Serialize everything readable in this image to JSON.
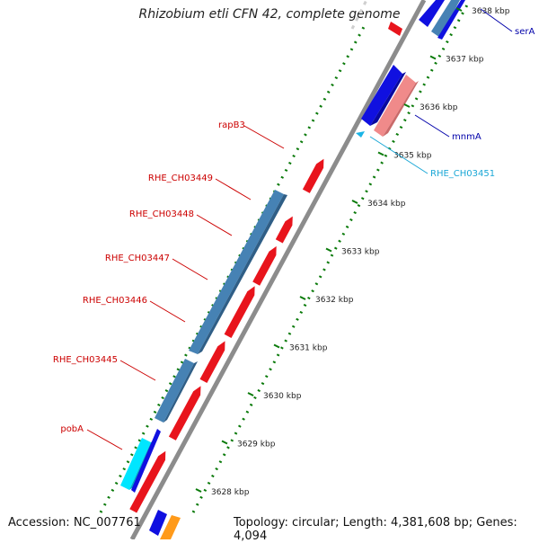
{
  "title": "Rhizobium etli CFN 42, complete genome",
  "footer": {
    "accession": "Accession: NC_007761",
    "summary": "Topology: circular; Length: 4,381,608 bp; Genes: 4,094"
  },
  "colors": {
    "forward_red": "#e8141c",
    "forward_blue": "#1010e0",
    "forward_pink": "#f08a8a",
    "steelblue": "#4682b4",
    "cyan": "#00e6ff",
    "orange": "#ff9a1a",
    "backbone": "#8c8c8c",
    "tick": "#0a7a0a",
    "label_red": "#cc0000",
    "label_blue": "#0000aa",
    "label_cyan": "#1aa7d6"
  },
  "map": {
    "axis_unit": "kbp",
    "visible_range_kbp": [
      3627.6,
      3638.2
    ],
    "ticks": [
      {
        "label": "3628 kbp",
        "pos_kbp": 3628
      },
      {
        "label": "3629 kbp",
        "pos_kbp": 3629
      },
      {
        "label": "3630 kbp",
        "pos_kbp": 3630
      },
      {
        "label": "3631 kbp",
        "pos_kbp": 3631
      },
      {
        "label": "3632 kbp",
        "pos_kbp": 3632
      },
      {
        "label": "3633 kbp",
        "pos_kbp": 3633
      },
      {
        "label": "3634 kbp",
        "pos_kbp": 3634
      },
      {
        "label": "3635 kbp",
        "pos_kbp": 3635
      },
      {
        "label": "3636 kbp",
        "pos_kbp": 3636
      },
      {
        "label": "3637 kbp",
        "pos_kbp": 3637
      },
      {
        "label": "3638 kbp",
        "pos_kbp": 3638
      }
    ],
    "genes": [
      {
        "name": "pobA",
        "label": "pobA",
        "start": 3628.05,
        "end": 3629.25,
        "strand": "+",
        "color_key": "forward_red",
        "label_color_key": "label_red"
      },
      {
        "name": "RHE_CH03445",
        "label": "RHE_CH03445",
        "start": 3629.5,
        "end": 3630.55,
        "strand": "+",
        "color_key": "forward_red",
        "label_color_key": "label_red"
      },
      {
        "name": "RHE_CH03446",
        "label": "RHE_CH03446",
        "start": 3630.65,
        "end": 3631.45,
        "strand": "+",
        "color_key": "forward_red",
        "label_color_key": "label_red"
      },
      {
        "name": "RHE_CH03447",
        "label": "RHE_CH03447",
        "start": 3631.55,
        "end": 3632.55,
        "strand": "+",
        "color_key": "forward_red",
        "label_color_key": "label_red"
      },
      {
        "name": "RHE_CH03448",
        "label": "RHE_CH03448",
        "start": 3632.6,
        "end": 3633.35,
        "strand": "+",
        "color_key": "forward_red",
        "label_color_key": "label_red"
      },
      {
        "name": "RHE_CH03449",
        "label": "RHE_CH03449",
        "start": 3633.45,
        "end": 3633.95,
        "strand": "+",
        "color_key": "forward_red",
        "label_color_key": "label_red"
      },
      {
        "name": "rapB3",
        "label": "rapB3",
        "start": 3634.45,
        "end": 3635.1,
        "strand": "+",
        "color_key": "forward_red",
        "label_color_key": "label_red"
      },
      {
        "name": "mnmA",
        "label": "mnmA",
        "start": 3635.55,
        "end": 3636.8,
        "strand": "-",
        "color_key": "forward_pink",
        "label_color_key": "label_blue"
      },
      {
        "name": "serA",
        "label": "serA",
        "start": 3637.55,
        "end": 3638.2,
        "strand": "-",
        "color_key": "forward_blue",
        "label_color_key": "label_blue"
      },
      {
        "name": "RHE_CH03451",
        "label": "RHE_CH03451",
        "start": 3635.15,
        "end": 3635.25,
        "strand": "-",
        "color_key": "cyan",
        "label_color_key": "label_cyan"
      }
    ]
  }
}
